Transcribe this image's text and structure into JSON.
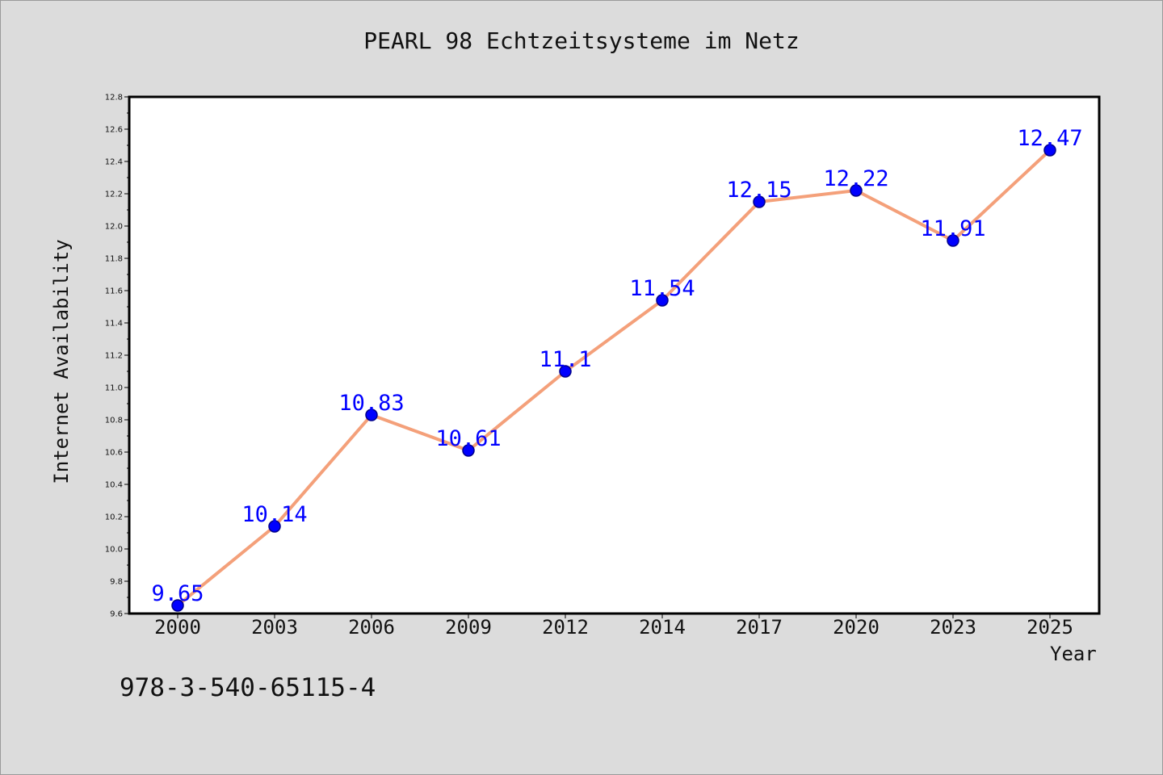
{
  "chart_data": {
    "type": "line",
    "title": "PEARL 98 Echtzeitsysteme im Netz",
    "xlabel": "Year",
    "ylabel": "Internet Availability",
    "categories": [
      "2000",
      "2003",
      "2006",
      "2009",
      "2012",
      "2014",
      "2017",
      "2020",
      "2023",
      "2025"
    ],
    "series": [
      {
        "values": [
          9.65,
          10.14,
          10.83,
          10.61,
          11.1,
          11.54,
          12.15,
          12.22,
          11.91,
          12.47
        ],
        "labels": [
          "9.65",
          "10.14",
          "10.83",
          "10.61",
          "11.1",
          "11.54",
          "12.15",
          "12.22",
          "11.91",
          "12.47"
        ]
      }
    ],
    "ylim": [
      9.6,
      12.8
    ],
    "yticks": [
      "9.6",
      "9.8",
      "10.0",
      "10.2",
      "10.4",
      "10.6",
      "10.8",
      "11.0",
      "11.2",
      "11.4",
      "11.6",
      "11.8",
      "12.0",
      "12.2",
      "12.4",
      "12.6",
      "12.8"
    ],
    "grid": false,
    "colors": {
      "line": "#f4a07a",
      "marker": "#0000ff",
      "label": "#0000ff"
    }
  },
  "footer": {
    "isbn": "978-3-540-65115-4"
  }
}
